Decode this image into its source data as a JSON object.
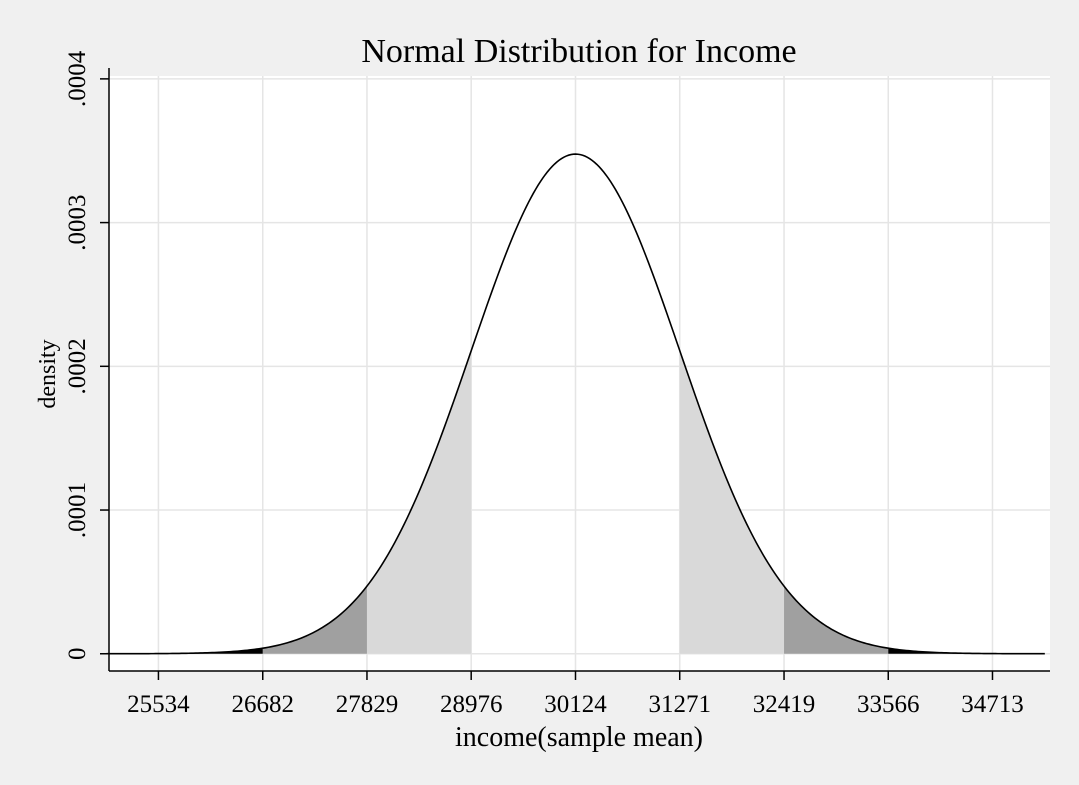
{
  "chart_data": {
    "type": "area",
    "title": "Normal Distribution for Income",
    "xlabel": "income(sample mean)",
    "ylabel": "density",
    "x_ticks": [
      25534,
      26682,
      27829,
      28976,
      30124,
      31271,
      32419,
      33566,
      34713
    ],
    "y_ticks": [
      0,
      0.0001,
      0.0002,
      0.0003,
      0.0004
    ],
    "y_tick_labels": [
      "0",
      ".0001",
      ".0002",
      ".0003",
      ".0004"
    ],
    "xlim": [
      24990,
      35346
    ],
    "ylim": [
      -1.2e-05,
      0.000402
    ],
    "grid": true,
    "legend": "none",
    "series": [
      {
        "distribution": "normal",
        "mean": 30124,
        "sd": 1147.5,
        "x_range": [
          24962,
          35289
        ]
      }
    ],
    "shaded_regions": [
      {
        "x": [
          26682,
          27829
        ],
        "color": "#a0a0a0"
      },
      {
        "x": [
          27829,
          28976
        ],
        "color": "#d9d9d9"
      },
      {
        "x": [
          31271,
          32419
        ],
        "color": "#d9d9d9"
      },
      {
        "x": [
          32419,
          33566
        ],
        "color": "#a0a0a0"
      },
      {
        "x": [
          24962,
          26682
        ],
        "color": "#000000"
      },
      {
        "x": [
          33566,
          35289
        ],
        "color": "#000000"
      }
    ],
    "colors": {
      "background": "#f0f0f0",
      "plot_area": "#ffffff",
      "grid": "#e5e5e5",
      "curve": "#000000"
    }
  }
}
